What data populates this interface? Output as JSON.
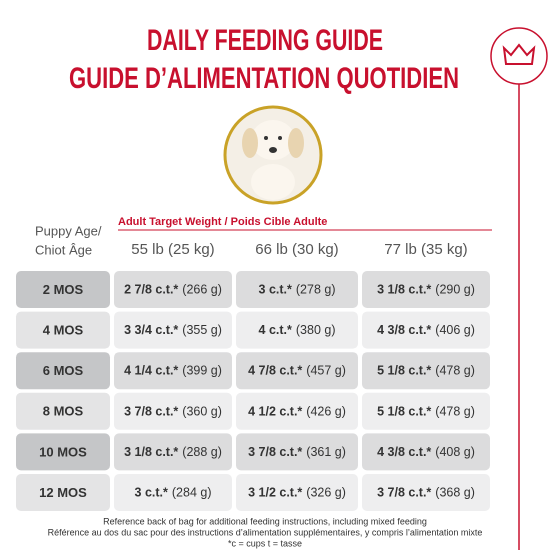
{
  "header": {
    "title_en": "DAILY FEEDING GUIDE",
    "title_fr": "GUIDE D’ALIMENTATION QUOTIDIEN"
  },
  "table": {
    "age_header": [
      "Puppy Age/",
      "Chiot Âge"
    ],
    "weight_header": "Adult Target Weight / Poids Cible Adulte",
    "columns": [
      "55 lb (25 kg)",
      "66 lb (30 kg)",
      "77 lb (35 kg)"
    ],
    "rows": [
      {
        "age": "2 MOS",
        "cells": [
          {
            "cups": "2 7/8 c.t.*",
            "grams": "(266 g)"
          },
          {
            "cups": "3 c.t.*",
            "grams": "(278 g)"
          },
          {
            "cups": "3 1/8 c.t.*",
            "grams": "(290 g)"
          }
        ]
      },
      {
        "age": "4 MOS",
        "cells": [
          {
            "cups": "3 3/4 c.t.*",
            "grams": "(355 g)"
          },
          {
            "cups": "4 c.t.*",
            "grams": "(380 g)"
          },
          {
            "cups": "4 3/8 c.t.*",
            "grams": "(406 g)"
          }
        ]
      },
      {
        "age": "6 MOS",
        "cells": [
          {
            "cups": "4 1/4 c.t.*",
            "grams": "(399 g)"
          },
          {
            "cups": "4 7/8 c.t.*",
            "grams": "(457 g)"
          },
          {
            "cups": "5 1/8 c.t.*",
            "grams": "(478 g)"
          }
        ]
      },
      {
        "age": "8 MOS",
        "cells": [
          {
            "cups": "3 7/8 c.t.*",
            "grams": "(360 g)"
          },
          {
            "cups": "4 1/2 c.t.*",
            "grams": "(426 g)"
          },
          {
            "cups": "5 1/8 c.t.*",
            "grams": "(478 g)"
          }
        ]
      },
      {
        "age": "10 MOS",
        "cells": [
          {
            "cups": "3 1/8 c.t.*",
            "grams": "(288 g)"
          },
          {
            "cups": "3 7/8 c.t.*",
            "grams": "(361 g)"
          },
          {
            "cups": "4 3/8 c.t.*",
            "grams": "(408 g)"
          }
        ]
      },
      {
        "age": "12 MOS",
        "cells": [
          {
            "cups": "3 c.t.*",
            "grams": "(284 g)"
          },
          {
            "cups": "3 1/2 c.t.*",
            "grams": "(326 g)"
          },
          {
            "cups": "3 7/8 c.t.*",
            "grams": "(368 g)"
          }
        ]
      }
    ]
  },
  "footnotes": [
    "Reference back of bag for additional feeding instructions, including mixed feeding",
    "Référence au dos du sac pour des instructions d’alimentation supplémentaires, y compris l’alimentation mixte",
    "*c = cups t = tasse"
  ]
}
